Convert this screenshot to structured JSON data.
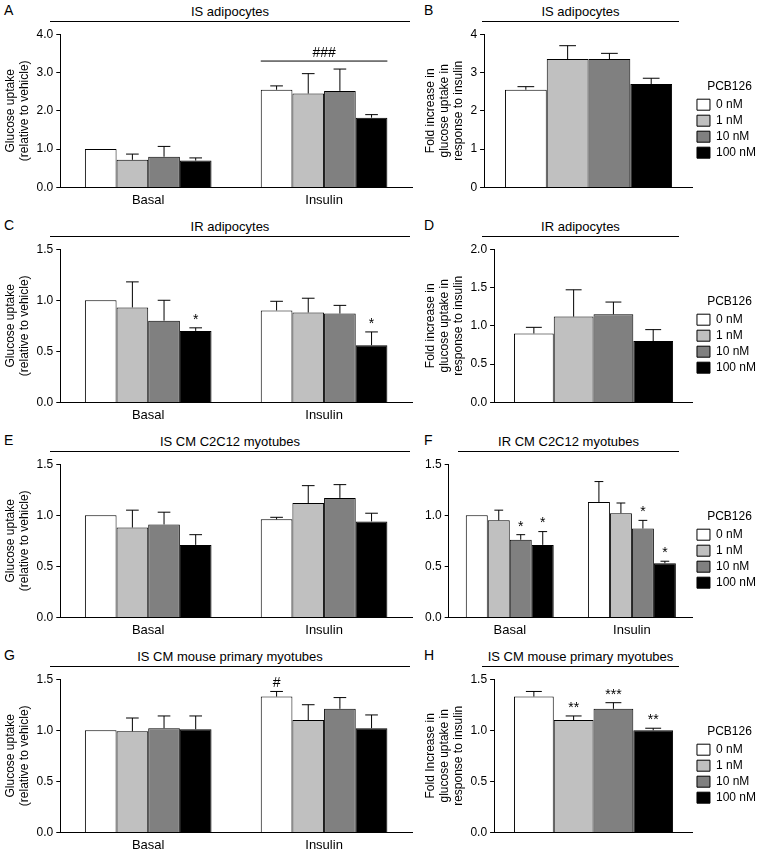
{
  "chart_data": [
    {
      "panel": "A",
      "type": "bar",
      "title": "IS adipocytes",
      "y_label": [
        "Glucose uptake",
        "(relative to vehicle)"
      ],
      "categories": [
        "Basal",
        "Insulin"
      ],
      "ylim": [
        0,
        4
      ],
      "yticks": [
        {
          "value": 0,
          "label": "0.0"
        },
        {
          "value": 1,
          "label": "1.0"
        },
        {
          "value": 2,
          "label": "2.0"
        },
        {
          "value": 3,
          "label": "3.0"
        },
        {
          "value": 4,
          "label": "4.0"
        }
      ],
      "grid": false,
      "series": [
        {
          "name": "0 nM",
          "color": "#ffffff",
          "values": [
            1.0,
            2.55
          ],
          "errors": [
            0,
            0.1
          ]
        },
        {
          "name": "1 nM",
          "color": "#c0c0c0",
          "values": [
            0.72,
            2.45
          ],
          "errors": [
            0.15,
            0.52
          ]
        },
        {
          "name": "10 nM",
          "color": "#808080",
          "values": [
            0.8,
            2.52
          ],
          "errors": [
            0.27,
            0.57
          ]
        },
        {
          "name": "100 nM",
          "color": "#000000",
          "values": [
            0.7,
            1.82
          ],
          "errors": [
            0.07,
            0.08
          ]
        }
      ],
      "annotations": [
        {
          "text": "###",
          "category": "Insulin"
        }
      ]
    },
    {
      "panel": "B",
      "type": "bar",
      "title": "IS adipocytes",
      "y_label": [
        "Fold increase in",
        "glucose uptake in",
        "response to insulin"
      ],
      "categories": [
        null
      ],
      "ylim": [
        0,
        4
      ],
      "yticks": [
        0,
        1,
        2,
        3,
        4
      ],
      "grid": false,
      "legend": "right",
      "legend_title": "PCB126",
      "series": [
        {
          "name": "0 nM",
          "color": "#ffffff",
          "values": [
            2.55
          ],
          "errors": [
            0.08
          ]
        },
        {
          "name": "1 nM",
          "color": "#c0c0c0",
          "values": [
            3.35
          ],
          "errors": [
            0.35
          ]
        },
        {
          "name": "10 nM",
          "color": "#808080",
          "values": [
            3.35
          ],
          "errors": [
            0.15
          ]
        },
        {
          "name": "100 nM",
          "color": "#000000",
          "values": [
            2.7
          ],
          "errors": [
            0.15
          ]
        }
      ]
    },
    {
      "panel": "C",
      "type": "bar",
      "title": "IR adipocytes",
      "y_label": [
        "Glucose uptake",
        "(relative to vehicle)"
      ],
      "categories": [
        "Basal",
        "Insulin"
      ],
      "ylim": [
        0,
        1.5
      ],
      "yticks": [
        {
          "value": 0,
          "label": "0.0"
        },
        0.5,
        {
          "value": 1,
          "label": "1.0"
        },
        1.5
      ],
      "grid": false,
      "series": [
        {
          "name": "0 nM",
          "color": "#ffffff",
          "values": [
            1.0,
            0.9
          ],
          "errors": [
            0,
            0.09
          ]
        },
        {
          "name": "1 nM",
          "color": "#c0c0c0",
          "values": [
            0.93,
            0.88
          ],
          "errors": [
            0.25,
            0.14
          ]
        },
        {
          "name": "10 nM",
          "color": "#808080",
          "values": [
            0.8,
            0.87
          ],
          "errors": [
            0.2,
            0.08
          ]
        },
        {
          "name": "100 nM",
          "color": "#000000",
          "values": [
            0.7,
            0.56
          ],
          "errors": [
            0.03,
            0.13
          ],
          "marks": [
            "*",
            "*"
          ]
        }
      ]
    },
    {
      "panel": "D",
      "type": "bar",
      "title": "IR adipocytes",
      "y_label": [
        "Fold increase in",
        "glucose uptake in",
        "response to insulin"
      ],
      "categories": [
        null
      ],
      "ylim": [
        0,
        2
      ],
      "yticks": [
        {
          "value": 0,
          "label": "0.0"
        },
        0.5,
        {
          "value": 1,
          "label": "1.0"
        },
        1.5,
        {
          "value": 2,
          "label": "2.0"
        }
      ],
      "grid": false,
      "legend": "right",
      "legend_title": "PCB126",
      "series": [
        {
          "name": "0 nM",
          "color": "#ffffff",
          "values": [
            0.9
          ],
          "errors": [
            0.08
          ]
        },
        {
          "name": "1 nM",
          "color": "#c0c0c0",
          "values": [
            1.12
          ],
          "errors": [
            0.35
          ]
        },
        {
          "name": "10 nM",
          "color": "#808080",
          "values": [
            1.15
          ],
          "errors": [
            0.16
          ]
        },
        {
          "name": "100 nM",
          "color": "#000000",
          "values": [
            0.8
          ],
          "errors": [
            0.15
          ]
        }
      ]
    },
    {
      "panel": "E",
      "type": "bar",
      "title": "IS CM C2C12 myotubes",
      "y_label": [
        "Glucose uptake",
        "(relative to vehicle)"
      ],
      "categories": [
        "Basal",
        "Insulin"
      ],
      "ylim": [
        0,
        1.5
      ],
      "yticks": [
        {
          "value": 0,
          "label": "0.0"
        },
        0.5,
        {
          "value": 1,
          "label": "1.0"
        },
        1.5
      ],
      "grid": false,
      "series": [
        {
          "name": "0 nM",
          "color": "#ffffff",
          "values": [
            1.0,
            0.96
          ],
          "errors": [
            0,
            0.02
          ]
        },
        {
          "name": "1 nM",
          "color": "#c0c0c0",
          "values": [
            0.88,
            1.12
          ],
          "errors": [
            0.17,
            0.17
          ]
        },
        {
          "name": "10 nM",
          "color": "#808080",
          "values": [
            0.91,
            1.17
          ],
          "errors": [
            0.12,
            0.13
          ]
        },
        {
          "name": "100 nM",
          "color": "#000000",
          "values": [
            0.71,
            0.94
          ],
          "errors": [
            0.1,
            0.08
          ]
        }
      ]
    },
    {
      "panel": "F",
      "type": "bar",
      "title": "IR CM C2C12 myotubes",
      "categories": [
        "Basal",
        "Insulin"
      ],
      "ylim": [
        0,
        1.5
      ],
      "yticks": [
        {
          "value": 0,
          "label": "0.0"
        },
        0.5,
        {
          "value": 1,
          "label": "1.0"
        },
        1.5
      ],
      "grid": false,
      "legend": "right",
      "legend_title": "PCB126",
      "series": [
        {
          "name": "0 nM",
          "color": "#ffffff",
          "values": [
            1.0,
            1.13
          ],
          "errors": [
            0,
            0.2
          ]
        },
        {
          "name": "1 nM",
          "color": "#c0c0c0",
          "values": [
            0.95,
            1.02
          ],
          "errors": [
            0.1,
            0.1
          ]
        },
        {
          "name": "10 nM",
          "color": "#808080",
          "values": [
            0.76,
            0.87
          ],
          "errors": [
            0.05,
            0.08
          ],
          "marks": [
            "*",
            "*"
          ]
        },
        {
          "name": "100 nM",
          "color": "#000000",
          "values": [
            0.71,
            0.53
          ],
          "errors": [
            0.13,
            0.02
          ],
          "marks": [
            "*",
            "*"
          ]
        }
      ]
    },
    {
      "panel": "G",
      "type": "bar",
      "title": "IS CM mouse primary myotubes",
      "y_label": [
        "Glucose uptake",
        "(relative to vehicle)"
      ],
      "categories": [
        "Basal",
        "Insulin"
      ],
      "ylim": [
        0,
        1.5
      ],
      "yticks": [
        {
          "value": 0,
          "label": "0.0"
        },
        0.5,
        {
          "value": 1,
          "label": "1.0"
        },
        1.5
      ],
      "grid": false,
      "series": [
        {
          "name": "0 nM",
          "color": "#ffffff",
          "values": [
            1.0,
            1.33
          ],
          "errors": [
            0,
            0.05
          ],
          "marks": [
            null,
            "#"
          ]
        },
        {
          "name": "1 nM",
          "color": "#c0c0c0",
          "values": [
            0.99,
            1.1
          ],
          "errors": [
            0.13,
            0.15
          ]
        },
        {
          "name": "10 nM",
          "color": "#808080",
          "values": [
            1.02,
            1.21
          ],
          "errors": [
            0.12,
            0.11
          ]
        },
        {
          "name": "100 nM",
          "color": "#000000",
          "values": [
            1.01,
            1.02
          ],
          "errors": [
            0.13,
            0.13
          ]
        }
      ]
    },
    {
      "panel": "H",
      "type": "bar",
      "title": "IS CM mouse primary myotubes",
      "y_label": [
        "Fold Increase in",
        "glucose uptake in",
        "response to insulin"
      ],
      "categories": [
        null
      ],
      "ylim": [
        0,
        1.5
      ],
      "yticks": [
        {
          "value": 0,
          "label": "0.0"
        },
        0.5,
        {
          "value": 1,
          "label": "1.0"
        },
        1.5
      ],
      "grid": false,
      "legend": "right",
      "legend_title": "PCB126",
      "series": [
        {
          "name": "0 nM",
          "color": "#ffffff",
          "values": [
            1.33
          ],
          "errors": [
            0.05
          ]
        },
        {
          "name": "1 nM",
          "color": "#c0c0c0",
          "values": [
            1.1
          ],
          "errors": [
            0.04
          ],
          "marks": [
            "**"
          ]
        },
        {
          "name": "10 nM",
          "color": "#808080",
          "values": [
            1.21
          ],
          "errors": [
            0.06
          ],
          "marks": [
            "***"
          ]
        },
        {
          "name": "100 nM",
          "color": "#000000",
          "values": [
            1.0
          ],
          "errors": [
            0.02
          ],
          "marks": [
            "**"
          ]
        }
      ]
    }
  ]
}
